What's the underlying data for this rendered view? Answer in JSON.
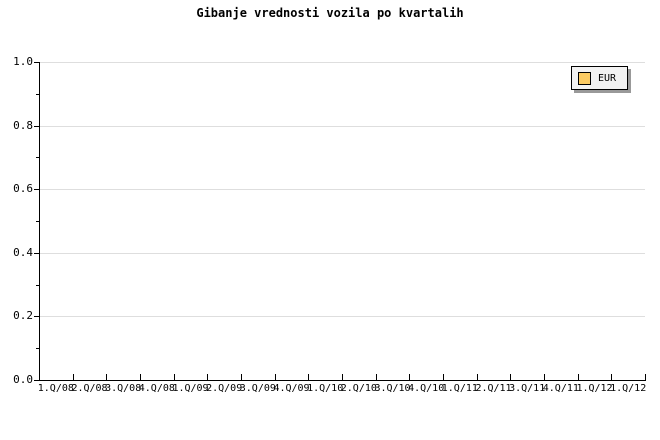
{
  "title": "Gibanje vrednosti vozila po kvartalih",
  "legend": {
    "position": "top-right",
    "items": [
      {
        "label": "EUR",
        "swatch_color": "#fbcb63"
      }
    ]
  },
  "chart_data": {
    "type": "line",
    "title": "Gibanje vrednosti vozila po kvartalih",
    "xlabel": "",
    "ylabel": "",
    "x_categories": [
      "1.Q/08",
      "2.Q/08",
      "3.Q/08",
      "4.Q/08",
      "1.Q/09",
      "2.Q/09",
      "3.Q/09",
      "4.Q/09",
      "1.Q/10",
      "2.Q/10",
      "3.Q/10",
      "4.Q/10",
      "1.Q/11",
      "2.Q/11",
      "3.Q/11",
      "4.Q/11",
      "1.Q/12",
      "1.Q/12"
    ],
    "ylim": [
      0.0,
      1.0
    ],
    "y_major_ticks": [
      0.0,
      0.2,
      0.4,
      0.6,
      0.8,
      1.0
    ],
    "y_major_tick_labels": [
      "0.0",
      "0.2",
      "0.4",
      "0.6",
      "0.8",
      "1.0"
    ],
    "y_minor_ticks": [
      0.1,
      0.3,
      0.5,
      0.7,
      0.9
    ],
    "grid": "horizontal-major",
    "legend_position": "top-right",
    "series": [
      {
        "name": "EUR",
        "color": "#fbcb63",
        "values": []
      }
    ],
    "colors": {
      "axis": "#000000",
      "grid": "#dedede",
      "legend_background": "#f2f2f2",
      "legend_shadow": "#999999",
      "series_eur": "#fbcb63"
    }
  }
}
